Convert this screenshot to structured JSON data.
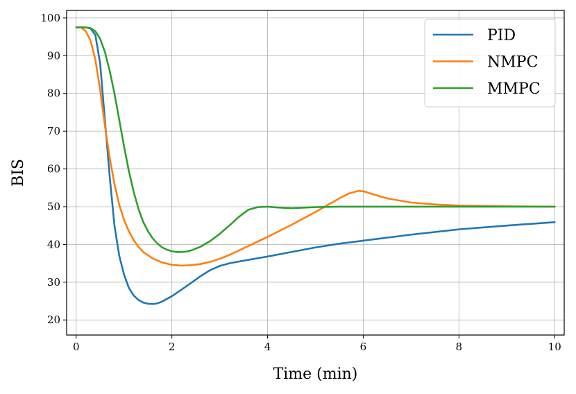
{
  "chart_data": {
    "type": "line",
    "title": "",
    "xlabel": "Time (min)",
    "ylabel": "BIS",
    "xlim": [
      -0.2,
      10.2
    ],
    "ylim": [
      16,
      102
    ],
    "xticks": [
      0,
      2,
      4,
      6,
      8,
      10
    ],
    "yticks": [
      20,
      30,
      40,
      50,
      60,
      70,
      80,
      90,
      100
    ],
    "grid": true,
    "legend_position": "top-right",
    "series": [
      {
        "name": "PID",
        "color": "#1f77b4",
        "x": [
          0,
          0.2,
          0.3,
          0.4,
          0.5,
          0.6,
          0.7,
          0.8,
          0.9,
          1.0,
          1.1,
          1.2,
          1.3,
          1.4,
          1.5,
          1.6,
          1.7,
          1.8,
          2.0,
          2.2,
          2.4,
          2.6,
          2.8,
          3.0,
          3.2,
          3.5,
          4.0,
          4.5,
          5.0,
          5.5,
          6.0,
          7.0,
          8.0,
          9.0,
          10.0
        ],
        "y": [
          97.5,
          97.5,
          97.2,
          95.5,
          88,
          73,
          58,
          45,
          37,
          32,
          28.5,
          26.5,
          25.3,
          24.6,
          24.3,
          24.2,
          24.4,
          24.9,
          26.3,
          28,
          29.8,
          31.6,
          33.2,
          34.3,
          35,
          35.7,
          36.8,
          38,
          39.2,
          40.2,
          41,
          42.6,
          44,
          45,
          45.9
        ]
      },
      {
        "name": "NMPC",
        "color": "#ff7f0e",
        "x": [
          0,
          0.1,
          0.2,
          0.3,
          0.4,
          0.5,
          0.6,
          0.7,
          0.8,
          0.9,
          1.0,
          1.1,
          1.2,
          1.3,
          1.4,
          1.6,
          1.8,
          2.0,
          2.2,
          2.4,
          2.6,
          2.8,
          3.0,
          3.2,
          3.5,
          4.0,
          4.5,
          5.0,
          5.5,
          5.7,
          5.9,
          6.0,
          6.2,
          6.5,
          7.0,
          7.5,
          8.0,
          9.0,
          10.0
        ],
        "y": [
          97.5,
          97.5,
          96.5,
          94,
          89,
          81,
          71.5,
          63,
          56,
          50.5,
          46.5,
          43.5,
          41.2,
          39.4,
          38,
          36.3,
          35.2,
          34.6,
          34.4,
          34.5,
          34.8,
          35.4,
          36.2,
          37.2,
          39,
          42,
          45.2,
          48.6,
          52.2,
          53.5,
          54.2,
          54.1,
          53.3,
          52.2,
          51.1,
          50.6,
          50.3,
          50.1,
          50
        ]
      },
      {
        "name": "MMPC",
        "color": "#2ca02c",
        "x": [
          0,
          0.2,
          0.3,
          0.4,
          0.5,
          0.6,
          0.7,
          0.8,
          0.9,
          1.0,
          1.1,
          1.2,
          1.3,
          1.4,
          1.5,
          1.6,
          1.7,
          1.8,
          1.9,
          2.0,
          2.1,
          2.2,
          2.3,
          2.4,
          2.6,
          2.8,
          3.0,
          3.2,
          3.4,
          3.6,
          3.8,
          4.0,
          4.2,
          4.5,
          5.0,
          5.5,
          6.0,
          7.0,
          8.0,
          9.0,
          10.0
        ],
        "y": [
          97.5,
          97.5,
          97.3,
          96.5,
          94.5,
          91,
          86,
          80,
          73,
          66,
          59.5,
          54,
          49.5,
          46,
          43.5,
          41.6,
          40.2,
          39.2,
          38.6,
          38.2,
          38,
          38,
          38.1,
          38.4,
          39.4,
          40.9,
          42.8,
          45,
          47.3,
          49.2,
          49.9,
          50,
          49.8,
          49.6,
          49.9,
          50,
          50,
          50,
          50,
          50,
          50
        ]
      }
    ]
  }
}
